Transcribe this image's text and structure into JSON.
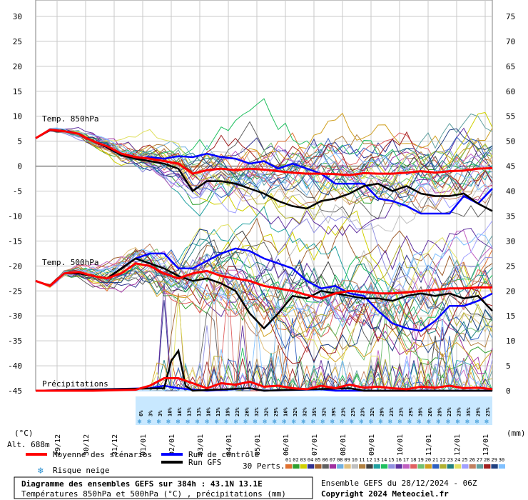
{
  "chart_data": {
    "type": "line",
    "title": "Diagramme des ensembles GEFS sur 384h : 43.1N 13.1E",
    "subtitle": "Températures 850hPa et 500hPa (°C) , précipitations (mm)",
    "run_info": "Ensemble GEFS du 28/12/2024 - 06Z",
    "copyright": "Copyright 2024 Meteociel.fr",
    "altitude": "Alt. 688m",
    "left_axis_unit": "(°C)",
    "right_axis_unit": "(mm)",
    "ylim_left": [
      -45,
      30
    ],
    "ylim_right": [
      0,
      75
    ],
    "y_ticks_left": [
      "30",
      "25",
      "20",
      "15",
      "10",
      "5",
      "0",
      "-5",
      "-10",
      "-15",
      "-20",
      "-25",
      "-30",
      "-35",
      "-40",
      "-45"
    ],
    "y_ticks_right": [
      "75",
      "70",
      "65",
      "60",
      "55",
      "50",
      "45",
      "40",
      "35",
      "30",
      "25",
      "20",
      "15",
      "10",
      "5",
      "0"
    ],
    "x_tick_labels": [
      "29/12",
      "30/12",
      "31/12",
      "01/01",
      "02/01",
      "03/01",
      "04/01",
      "05/01",
      "06/01",
      "07/01",
      "08/01",
      "09/01",
      "10/01",
      "11/01",
      "12/01",
      "13/01"
    ],
    "grid": true,
    "panel_labels": {
      "t850": "Temp. 850hPa",
      "t500": "Temp. 500hPa",
      "precip": "Précipitations"
    },
    "legend": {
      "mean": "Moyenne des scénarios",
      "control": "Run de contrôle",
      "gfs": "Run GFS",
      "snow": "Risque neige",
      "perts": "30 Perts."
    },
    "pert_numbers": [
      "01",
      "02",
      "03",
      "04",
      "05",
      "06",
      "07",
      "08",
      "09",
      "10",
      "11",
      "12",
      "13",
      "14",
      "15",
      "16",
      "17",
      "18",
      "19",
      "20",
      "21",
      "22",
      "23",
      "24",
      "25",
      "26",
      "27",
      "28",
      "29",
      "30"
    ],
    "pert_colors": [
      "#e07030",
      "#30a030",
      "#d0d000",
      "#303090",
      "#a06030",
      "#606060",
      "#a030a0",
      "#70b0e0",
      "#e0c080",
      "#c0c0c0",
      "#b08040",
      "#404040",
      "#20a0a0",
      "#20c060",
      "#9090e0",
      "#6030a0",
      "#c060c0",
      "#e06060",
      "#70c070",
      "#d0a020",
      "#3060c0",
      "#b0b030",
      "#208080",
      "#e0e060",
      "#a0a0ff",
      "#c08060",
      "#60a0a0",
      "#a02020",
      "#204080",
      "#80c0ff"
    ],
    "snow_risk_pct": [
      "6%",
      "3%",
      "3%",
      "10%",
      "16%",
      "13%",
      "13%",
      "10%",
      "13%",
      "19%",
      "23%",
      "26%",
      "32%",
      "32%",
      "29%",
      "16%",
      "32%",
      "32%",
      "35%",
      "32%",
      "39%",
      "23%",
      "23%",
      "23%",
      "32%",
      "29%",
      "23%",
      "23%",
      "29%",
      "39%",
      "26%",
      "29%",
      "23%",
      "23%",
      "35%",
      "29%",
      "23%"
    ],
    "series": [
      {
        "name": "Moyenne des scénarios",
        "color": "#ff0000",
        "t850": [
          [
            0,
            5.6
          ],
          [
            12,
            7.3
          ],
          [
            24,
            7.0
          ],
          [
            36,
            6.5
          ],
          [
            48,
            5.0
          ],
          [
            60,
            4.0
          ],
          [
            72,
            2.5
          ],
          [
            84,
            1.8
          ],
          [
            96,
            1.5
          ],
          [
            108,
            1.0
          ],
          [
            120,
            0.5
          ],
          [
            132,
            -1.5
          ],
          [
            144,
            -0.8
          ],
          [
            156,
            -0.5
          ],
          [
            168,
            -0.8
          ],
          [
            180,
            -0.5
          ],
          [
            192,
            -0.7
          ],
          [
            204,
            -1.0
          ],
          [
            216,
            -1.3
          ],
          [
            228,
            -1.5
          ],
          [
            240,
            -1.5
          ],
          [
            252,
            -1.6
          ],
          [
            264,
            -1.8
          ],
          [
            276,
            -1.4
          ],
          [
            288,
            -1.5
          ],
          [
            300,
            -1.5
          ],
          [
            312,
            -1.3
          ],
          [
            324,
            -1.0
          ],
          [
            336,
            -1.3
          ],
          [
            348,
            -1.0
          ],
          [
            360,
            -0.9
          ],
          [
            372,
            -0.5
          ],
          [
            384,
            -0.4
          ]
        ],
        "t500": [
          [
            0,
            -23.0
          ],
          [
            12,
            -24.0
          ],
          [
            24,
            -21.5
          ],
          [
            36,
            -21.2
          ],
          [
            48,
            -22.0
          ],
          [
            60,
            -22.5
          ],
          [
            72,
            -21.5
          ],
          [
            84,
            -19.5
          ],
          [
            96,
            -20.0
          ],
          [
            108,
            -21.5
          ],
          [
            120,
            -22.5
          ],
          [
            132,
            -21.5
          ],
          [
            144,
            -21.0
          ],
          [
            156,
            -22.0
          ],
          [
            168,
            -22.5
          ],
          [
            180,
            -23.0
          ],
          [
            192,
            -24.0
          ],
          [
            204,
            -24.5
          ],
          [
            216,
            -25.0
          ],
          [
            228,
            -25.8
          ],
          [
            240,
            -26.5
          ],
          [
            252,
            -25.5
          ],
          [
            264,
            -25.0
          ],
          [
            276,
            -25.2
          ],
          [
            288,
            -25.5
          ],
          [
            300,
            -25.5
          ],
          [
            312,
            -25.3
          ],
          [
            324,
            -25.0
          ],
          [
            336,
            -24.8
          ],
          [
            348,
            -24.5
          ],
          [
            360,
            -24.5
          ],
          [
            372,
            -24.3
          ],
          [
            384,
            -24.3
          ]
        ],
        "precip": [
          [
            0,
            0
          ],
          [
            48,
            0
          ],
          [
            84,
            0.2
          ],
          [
            96,
            1.0
          ],
          [
            108,
            2.5
          ],
          [
            120,
            2.5
          ],
          [
            132,
            1.5
          ],
          [
            144,
            0.5
          ],
          [
            156,
            1.5
          ],
          [
            168,
            1.2
          ],
          [
            180,
            1.8
          ],
          [
            192,
            0.8
          ],
          [
            204,
            1.0
          ],
          [
            216,
            0.5
          ],
          [
            228,
            0.3
          ],
          [
            240,
            1.0
          ],
          [
            252,
            0.5
          ],
          [
            264,
            1.2
          ],
          [
            276,
            0.6
          ],
          [
            288,
            0.8
          ],
          [
            300,
            0.5
          ],
          [
            312,
            0.3
          ],
          [
            324,
            0.8
          ],
          [
            336,
            0.6
          ],
          [
            348,
            1.0
          ],
          [
            360,
            0.5
          ],
          [
            372,
            0.6
          ],
          [
            384,
            0.3
          ]
        ]
      },
      {
        "name": "Run de contrôle",
        "color": "#0000ff",
        "t850": [
          [
            0,
            5.6
          ],
          [
            12,
            7.2
          ],
          [
            24,
            7.0
          ],
          [
            36,
            6.5
          ],
          [
            48,
            5.0
          ],
          [
            60,
            3.8
          ],
          [
            72,
            2.5
          ],
          [
            84,
            1.5
          ],
          [
            96,
            1.8
          ],
          [
            108,
            1.5
          ],
          [
            120,
            2.0
          ],
          [
            132,
            1.8
          ],
          [
            144,
            2.5
          ],
          [
            156,
            1.8
          ],
          [
            168,
            1.5
          ],
          [
            180,
            0.5
          ],
          [
            192,
            1.0
          ],
          [
            204,
            -0.5
          ],
          [
            216,
            0.5
          ],
          [
            228,
            -0.5
          ],
          [
            240,
            -1.5
          ],
          [
            252,
            -3.5
          ],
          [
            264,
            -3.5
          ],
          [
            276,
            -3.5
          ],
          [
            288,
            -6.5
          ],
          [
            300,
            -7.0
          ],
          [
            312,
            -8.0
          ],
          [
            324,
            -9.5
          ],
          [
            336,
            -9.5
          ],
          [
            348,
            -9.5
          ],
          [
            360,
            -6.0
          ],
          [
            372,
            -7.5
          ],
          [
            384,
            -4.5
          ]
        ],
        "t500": [
          [
            0,
            -23.0
          ],
          [
            12,
            -24.0
          ],
          [
            24,
            -21.5
          ],
          [
            36,
            -21.5
          ],
          [
            48,
            -22.0
          ],
          [
            60,
            -22.5
          ],
          [
            72,
            -20.5
          ],
          [
            84,
            -18.5
          ],
          [
            96,
            -17.5
          ],
          [
            108,
            -17.5
          ],
          [
            120,
            -20.5
          ],
          [
            132,
            -20.5
          ],
          [
            144,
            -19.0
          ],
          [
            156,
            -17.5
          ],
          [
            168,
            -16.5
          ],
          [
            180,
            -17.0
          ],
          [
            192,
            -18.5
          ],
          [
            204,
            -19.5
          ],
          [
            216,
            -20.5
          ],
          [
            228,
            -23.0
          ],
          [
            240,
            -24.5
          ],
          [
            252,
            -24.0
          ],
          [
            264,
            -25.5
          ],
          [
            276,
            -26.0
          ],
          [
            288,
            -29.0
          ],
          [
            300,
            -31.5
          ],
          [
            312,
            -32.5
          ],
          [
            324,
            -33.0
          ],
          [
            336,
            -31.0
          ],
          [
            348,
            -28.0
          ],
          [
            360,
            -28.0
          ],
          [
            372,
            -27.0
          ],
          [
            384,
            -25.5
          ]
        ],
        "precip": [
          [
            0,
            0
          ],
          [
            96,
            0.5
          ],
          [
            108,
            1.0
          ],
          [
            120,
            0.5
          ],
          [
            132,
            0.2
          ],
          [
            144,
            0
          ],
          [
            180,
            0.5
          ],
          [
            192,
            0
          ],
          [
            240,
            0.3
          ],
          [
            252,
            0
          ],
          [
            384,
            0
          ]
        ]
      },
      {
        "name": "Run GFS",
        "color": "#000000",
        "t850": [
          [
            0,
            5.6
          ],
          [
            12,
            7.2
          ],
          [
            24,
            7.0
          ],
          [
            36,
            6.5
          ],
          [
            48,
            5.0
          ],
          [
            60,
            3.8
          ],
          [
            72,
            2.2
          ],
          [
            84,
            1.5
          ],
          [
            96,
            1.0
          ],
          [
            108,
            0.5
          ],
          [
            120,
            -0.5
          ],
          [
            132,
            -5.0
          ],
          [
            144,
            -3.0
          ],
          [
            156,
            -3.0
          ],
          [
            168,
            -3.5
          ],
          [
            180,
            -4.5
          ],
          [
            192,
            -5.5
          ],
          [
            204,
            -7.0
          ],
          [
            216,
            -8.0
          ],
          [
            228,
            -8.5
          ],
          [
            240,
            -7.0
          ],
          [
            252,
            -6.5
          ],
          [
            264,
            -5.5
          ],
          [
            276,
            -4.0
          ],
          [
            288,
            -3.5
          ],
          [
            300,
            -5.0
          ],
          [
            312,
            -4.0
          ],
          [
            324,
            -5.5
          ],
          [
            336,
            -6.0
          ],
          [
            348,
            -6.0
          ],
          [
            360,
            -5.5
          ],
          [
            372,
            -7.5
          ],
          [
            384,
            -9.0
          ]
        ],
        "t500": [
          [
            0,
            -23.0
          ],
          [
            12,
            -24.0
          ],
          [
            24,
            -21.5
          ],
          [
            36,
            -21.5
          ],
          [
            48,
            -22.0
          ],
          [
            60,
            -22.5
          ],
          [
            72,
            -20.5
          ],
          [
            84,
            -18.5
          ],
          [
            96,
            -19.5
          ],
          [
            108,
            -20.5
          ],
          [
            120,
            -22.0
          ],
          [
            132,
            -23.0
          ],
          [
            144,
            -22.5
          ],
          [
            156,
            -23.5
          ],
          [
            168,
            -25.0
          ],
          [
            180,
            -29.5
          ],
          [
            192,
            -32.5
          ],
          [
            204,
            -29.5
          ],
          [
            216,
            -26.0
          ],
          [
            228,
            -26.5
          ],
          [
            240,
            -25.0
          ],
          [
            252,
            -25.5
          ],
          [
            264,
            -26.0
          ],
          [
            276,
            -26.5
          ],
          [
            288,
            -26.5
          ],
          [
            300,
            -27.0
          ],
          [
            312,
            -26.0
          ],
          [
            324,
            -25.5
          ],
          [
            336,
            -26.0
          ],
          [
            348,
            -25.5
          ],
          [
            360,
            -26.5
          ],
          [
            372,
            -26.0
          ],
          [
            384,
            -29.0
          ]
        ],
        "precip": [
          [
            0,
            0
          ],
          [
            108,
            0.5
          ],
          [
            114,
            6.0
          ],
          [
            120,
            8.0
          ],
          [
            126,
            1.0
          ],
          [
            132,
            0
          ],
          [
            180,
            0.5
          ],
          [
            192,
            0
          ],
          [
            264,
            0.5
          ],
          [
            276,
            0
          ],
          [
            384,
            0
          ]
        ]
      }
    ]
  }
}
